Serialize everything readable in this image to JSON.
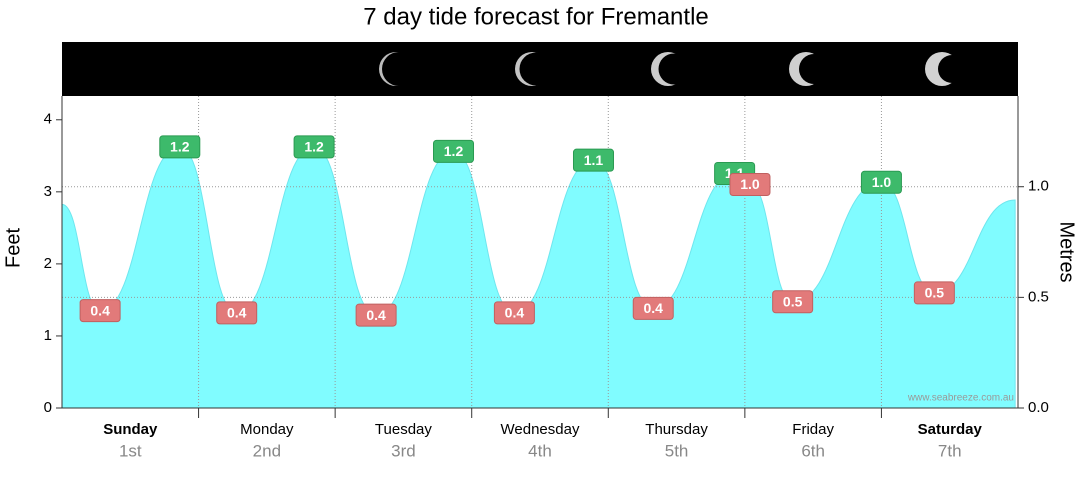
{
  "chart_data": {
    "type": "area",
    "title": "7 day tide forecast for Fremantle",
    "ylabel": "Feet",
    "y2label": "Metres",
    "watermark": "www.seabreeze.com.au",
    "categories": [
      "Sunday",
      "Monday",
      "Tuesday",
      "Wednesday",
      "Thursday",
      "Friday",
      "Saturday"
    ],
    "dates": [
      "1st",
      "2nd",
      "3rd",
      "4th",
      "5th",
      "6th",
      "7th"
    ],
    "bold_days": [
      true,
      false,
      false,
      false,
      false,
      false,
      true
    ],
    "xlim": [
      0,
      168
    ],
    "xticks": [
      24,
      48,
      72,
      96,
      120,
      144
    ],
    "ylim": [
      0,
      4.33
    ],
    "yticks": [
      0,
      1,
      2,
      3,
      4
    ],
    "y2lim": [
      0,
      1.41
    ],
    "y2ticks": [
      {
        "value": 0,
        "label": "0.0"
      },
      {
        "value": 0.5,
        "label": "0.5"
      },
      {
        "value": 1,
        "label": "1.0"
      }
    ],
    "grid": true,
    "high_color": "#3dba6b",
    "low_color": "#e27a7a",
    "series": [
      {
        "name": "Tide",
        "color": "#80fcff",
        "axis": "y2",
        "x": [
          0,
          6.7,
          20.7,
          30.7,
          44.3,
          55.2,
          68.8,
          79.5,
          93.4,
          103.9,
          118.2,
          120.9,
          128.4,
          144.0,
          153.3,
          167.5
        ],
        "values": [
          0.92,
          0.44,
          1.18,
          0.43,
          1.18,
          0.42,
          1.16,
          0.43,
          1.12,
          0.45,
          1.06,
          1.01,
          0.48,
          1.02,
          0.52,
          0.94
        ],
        "value_labels": [
          null,
          "0.4",
          "1.2",
          "0.4",
          "1.2",
          "0.4",
          "1.2",
          "0.4",
          "1.1",
          "0.4",
          "1.1",
          "1.0",
          "0.5",
          "1.0",
          "0.5",
          null
        ]
      }
    ]
  }
}
